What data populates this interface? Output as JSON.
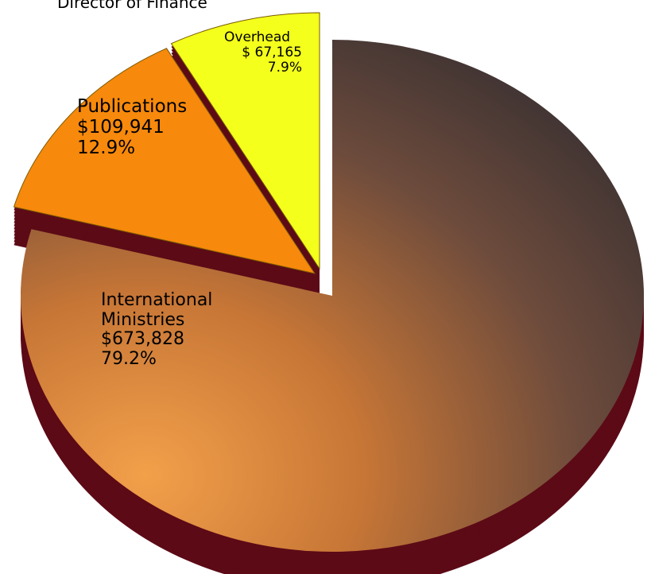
{
  "chart_data": {
    "type": "pie",
    "title": "Director of Finance",
    "categories": [
      "International Ministries",
      "Publications",
      "Overhead"
    ],
    "values": [
      673828,
      109941,
      67165
    ],
    "value_labels": [
      "$673,828",
      "$109,941",
      "$ 67,165"
    ],
    "percent_labels": [
      "79.2%",
      "12.9%",
      "7.9%"
    ],
    "colors": [
      "#b0602a",
      "#f7890c",
      "#f4ff1c"
    ],
    "side_color": "#5c0a16"
  }
}
